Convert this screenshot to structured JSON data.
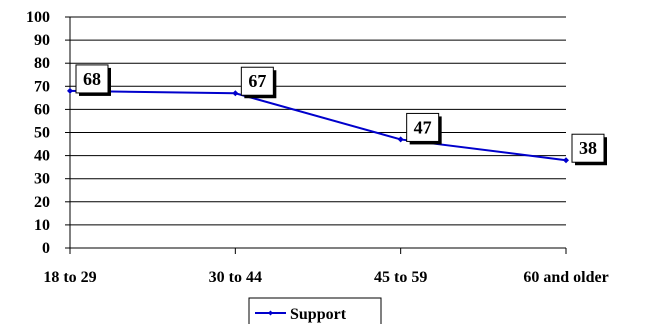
{
  "chart_data": {
    "type": "line",
    "categories": [
      "18 to 29",
      "30 to 44",
      "45 to 59",
      "60 and older"
    ],
    "series": [
      {
        "name": "Support",
        "values": [
          68,
          67,
          47,
          38
        ],
        "color": "#0000cc"
      }
    ],
    "data_labels": [
      "68",
      "67",
      "47",
      "38"
    ],
    "yticks": [
      0,
      10,
      20,
      30,
      40,
      50,
      60,
      70,
      80,
      90,
      100
    ],
    "ylim": [
      0,
      100
    ],
    "grid": true,
    "legend": {
      "position": "bottom-center",
      "label": "Support"
    }
  }
}
